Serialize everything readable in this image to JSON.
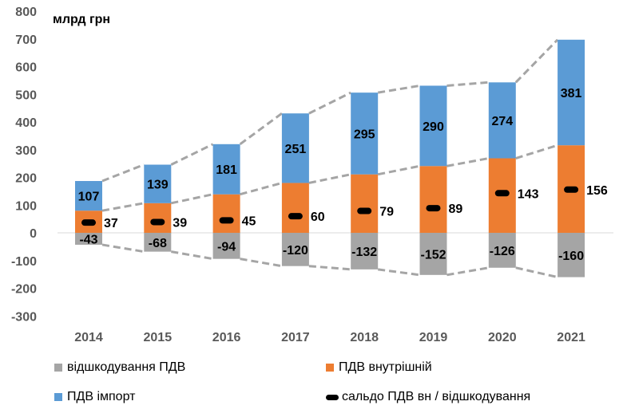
{
  "chart_data": {
    "type": "bar",
    "stacked": true,
    "unit_label": "млрд грн",
    "categories": [
      "2014",
      "2015",
      "2016",
      "2017",
      "2018",
      "2019",
      "2020",
      "2021"
    ],
    "y_ticks": [
      "800",
      "700",
      "600",
      "500",
      "400",
      "300",
      "200",
      "100",
      "0",
      "-100",
      "-200",
      "-300"
    ],
    "ylim": [
      -300,
      800
    ],
    "series": [
      {
        "name": "відшкодування ПДВ",
        "color": "#A5A5A5",
        "values": [
          -43,
          -68,
          -94,
          -120,
          -132,
          -152,
          -126,
          -160
        ],
        "labels": [
          "-43",
          "-68",
          "-94",
          "-120",
          "-132",
          "-152",
          "-126",
          "-160"
        ]
      },
      {
        "name": "ПДВ внутрішній",
        "color": "#ED7D31",
        "values": [
          80,
          107,
          139,
          180,
          211,
          241,
          269,
          316
        ]
      },
      {
        "name": "ПДВ імпорт",
        "color": "#5B9BD5",
        "values": [
          107,
          139,
          181,
          251,
          295,
          290,
          274,
          381
        ],
        "labels": [
          "107",
          "139",
          "181",
          "251",
          "295",
          "290",
          "274",
          "381"
        ]
      },
      {
        "name": "сальдо ПДВ вн / відшкодування",
        "color": "#000000",
        "values": [
          37,
          39,
          45,
          60,
          79,
          89,
          143,
          156
        ],
        "labels": [
          "37",
          "39",
          "45",
          "60",
          "79",
          "89",
          "143",
          "156"
        ]
      }
    ],
    "legend": {
      "refund": "відшкодування ПДВ",
      "domestic": "ПДВ внутрішній",
      "import": "ПДВ імпорт",
      "balance": "сальдо ПДВ вн / відшкодування"
    }
  }
}
